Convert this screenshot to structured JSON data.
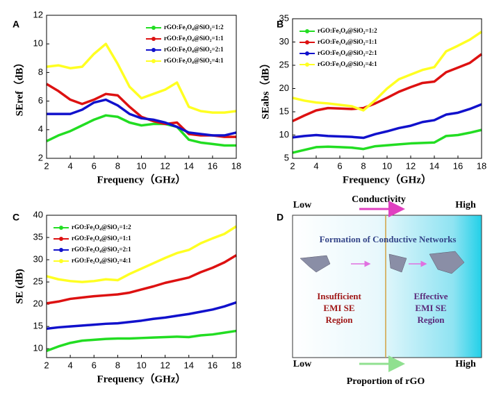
{
  "chart_data": [
    {
      "type": "line",
      "label": "A",
      "xlabel": "Frequency（GHz）",
      "ylabel": "SEref（dB）",
      "x": [
        2,
        3,
        4,
        5,
        6,
        7,
        8,
        9,
        10,
        11,
        12,
        13,
        14,
        15,
        16,
        17,
        18
      ],
      "xlim": [
        2,
        18
      ],
      "xticks": [
        2,
        4,
        6,
        8,
        10,
        12,
        14,
        16,
        18
      ],
      "ylim": [
        2,
        12
      ],
      "yticks": [
        2,
        4,
        6,
        8,
        10,
        12
      ],
      "legend": "upper-right",
      "series": [
        {
          "name": "rGO:Fe₃O₄@SiO₂=1:2",
          "color": "#22dd22",
          "values": [
            3.2,
            3.6,
            3.9,
            4.3,
            4.7,
            5.0,
            4.9,
            4.5,
            4.3,
            4.4,
            4.4,
            4.2,
            3.3,
            3.1,
            3.0,
            2.9,
            2.9
          ]
        },
        {
          "name": "rGO:Fe₃O₄@SiO₂=1:1",
          "color": "#dd1111",
          "values": [
            7.2,
            6.7,
            6.1,
            5.8,
            6.1,
            6.5,
            6.4,
            5.6,
            4.9,
            4.6,
            4.4,
            4.5,
            3.7,
            3.6,
            3.6,
            3.5,
            3.5
          ]
        },
        {
          "name": "rGO:Fe₃O₄@SiO₂=2:1",
          "color": "#1111cc",
          "values": [
            5.1,
            5.1,
            5.1,
            5.4,
            5.9,
            6.1,
            5.7,
            5.1,
            4.8,
            4.7,
            4.5,
            4.2,
            3.8,
            3.7,
            3.6,
            3.6,
            3.8
          ]
        },
        {
          "name": "rGO:Fe₃O₄@SiO₂=4:1",
          "color": "#ffff22",
          "values": [
            8.4,
            8.5,
            8.3,
            8.4,
            9.3,
            10.0,
            8.6,
            7.0,
            6.2,
            6.5,
            6.8,
            7.3,
            5.6,
            5.3,
            5.2,
            5.2,
            5.3
          ]
        }
      ]
    },
    {
      "type": "line",
      "label": "B",
      "xlabel": "Frequency（GHz）",
      "ylabel": "SEabs（dB）",
      "x": [
        2,
        3,
        4,
        5,
        6,
        7,
        8,
        9,
        10,
        11,
        12,
        13,
        14,
        15,
        16,
        17,
        18
      ],
      "xlim": [
        2,
        18
      ],
      "xticks": [
        2,
        4,
        6,
        8,
        10,
        12,
        14,
        16,
        18
      ],
      "ylim": [
        5,
        35
      ],
      "yticks": [
        5,
        10,
        15,
        20,
        25,
        30,
        35
      ],
      "legend": "upper-left",
      "series": [
        {
          "name": "rGO:Fe₃O₄@SiO₂=1:2",
          "color": "#22dd22",
          "values": [
            6.2,
            6.8,
            7.4,
            7.5,
            7.4,
            7.3,
            7.0,
            7.6,
            7.8,
            8.0,
            8.2,
            8.3,
            8.4,
            9.8,
            10.0,
            10.5,
            11.1
          ]
        },
        {
          "name": "rGO:Fe₃O₄@SiO₂=1:1",
          "color": "#dd1111",
          "values": [
            13.0,
            14.2,
            15.3,
            15.8,
            15.7,
            15.6,
            15.8,
            16.8,
            18.0,
            19.3,
            20.3,
            21.2,
            21.5,
            23.5,
            24.5,
            25.5,
            27.4
          ]
        },
        {
          "name": "rGO:Fe₃O₄@SiO₂=2:1",
          "color": "#1111cc",
          "values": [
            9.5,
            9.8,
            10.0,
            9.8,
            9.7,
            9.6,
            9.4,
            10.2,
            10.8,
            11.5,
            12.0,
            12.8,
            13.2,
            14.4,
            14.8,
            15.6,
            16.6
          ]
        },
        {
          "name": "rGO:Fe₃O₄@SiO₂=4:1",
          "color": "#ffff22",
          "values": [
            18.0,
            17.4,
            17.0,
            16.8,
            16.5,
            16.2,
            15.3,
            17.5,
            20.0,
            22.0,
            23.0,
            24.0,
            24.6,
            28.0,
            29.2,
            30.5,
            32.2
          ]
        }
      ]
    },
    {
      "type": "line",
      "label": "C",
      "xlabel": "Frequency（GHz）",
      "ylabel": "SE (dB)",
      "x": [
        2,
        3,
        4,
        5,
        6,
        7,
        8,
        9,
        10,
        11,
        12,
        13,
        14,
        15,
        16,
        17,
        18
      ],
      "xlim": [
        2,
        18
      ],
      "xticks": [
        2,
        4,
        6,
        8,
        10,
        12,
        14,
        16,
        18
      ],
      "ylim": [
        8,
        40
      ],
      "yticks": [
        10,
        15,
        20,
        25,
        30,
        35,
        40
      ],
      "legend": "upper-left",
      "series": [
        {
          "name": "rGO:Fe₃O₄@SiO₂=1:2",
          "color": "#22dd22",
          "values": [
            9.5,
            10.5,
            11.3,
            11.8,
            12.0,
            12.2,
            12.3,
            12.3,
            12.4,
            12.5,
            12.6,
            12.7,
            12.6,
            13.0,
            13.2,
            13.6,
            14.0
          ]
        },
        {
          "name": "rGO:Fe₃O₄@SiO₂=1:1",
          "color": "#dd1111",
          "values": [
            20.2,
            20.6,
            21.2,
            21.5,
            21.8,
            22.0,
            22.2,
            22.6,
            23.3,
            24.0,
            24.8,
            25.4,
            26.0,
            27.2,
            28.2,
            29.4,
            31.0
          ]
        },
        {
          "name": "rGO:Fe₃O₄@SiO₂=2:1",
          "color": "#1111cc",
          "values": [
            14.5,
            14.8,
            15.0,
            15.2,
            15.4,
            15.6,
            15.7,
            16.0,
            16.3,
            16.7,
            17.0,
            17.4,
            17.8,
            18.3,
            18.8,
            19.5,
            20.4
          ]
        },
        {
          "name": "rGO:Fe₃O₄@SiO₂=4:1",
          "color": "#ffff22",
          "values": [
            26.3,
            25.6,
            25.2,
            25.0,
            25.2,
            25.6,
            25.4,
            26.8,
            28.0,
            29.2,
            30.4,
            31.5,
            32.2,
            33.7,
            34.8,
            35.8,
            37.5
          ]
        }
      ]
    }
  ],
  "diagram": {
    "label": "D",
    "top_low": "Low",
    "top_title": "Conductivity",
    "top_high": "High",
    "network_title": "Formation of Conductive Networks",
    "region_left": [
      "Insufficient",
      "EMI SE",
      "Region"
    ],
    "region_right": [
      "Effective",
      "EMI SE",
      "Region"
    ],
    "bottom_low": "Low",
    "bottom_high": "High",
    "bottom_title": "Proportion of rGO"
  }
}
